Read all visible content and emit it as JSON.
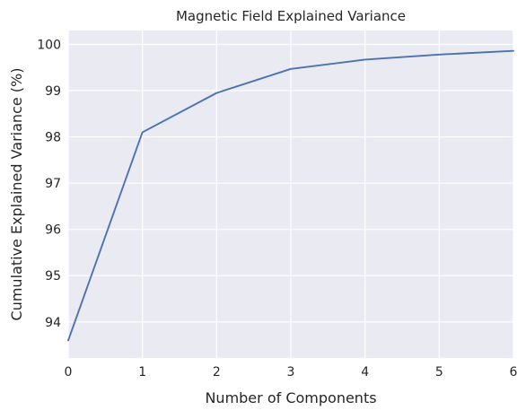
{
  "chart_data": {
    "type": "line",
    "title": "Magnetic Field Explained Variance",
    "xlabel": "Number of Components",
    "ylabel": "Cumulative Explained Variance (%)",
    "xlim": [
      0,
      6
    ],
    "ylim": [
      93.22,
      100.3
    ],
    "xticks": [
      0,
      1,
      2,
      3,
      4,
      5,
      6
    ],
    "yticks": [
      94,
      95,
      96,
      97,
      98,
      99,
      100
    ],
    "grid": true,
    "legend": "none",
    "colors": {
      "background": "#eaeaf2",
      "grid": "#ffffff",
      "line": "#4c72b0"
    },
    "series": [
      {
        "x": [
          0,
          1,
          2,
          3,
          4,
          5,
          6
        ],
        "values": [
          93.6,
          98.1,
          98.95,
          99.47,
          99.67,
          99.78,
          99.86
        ]
      }
    ]
  }
}
